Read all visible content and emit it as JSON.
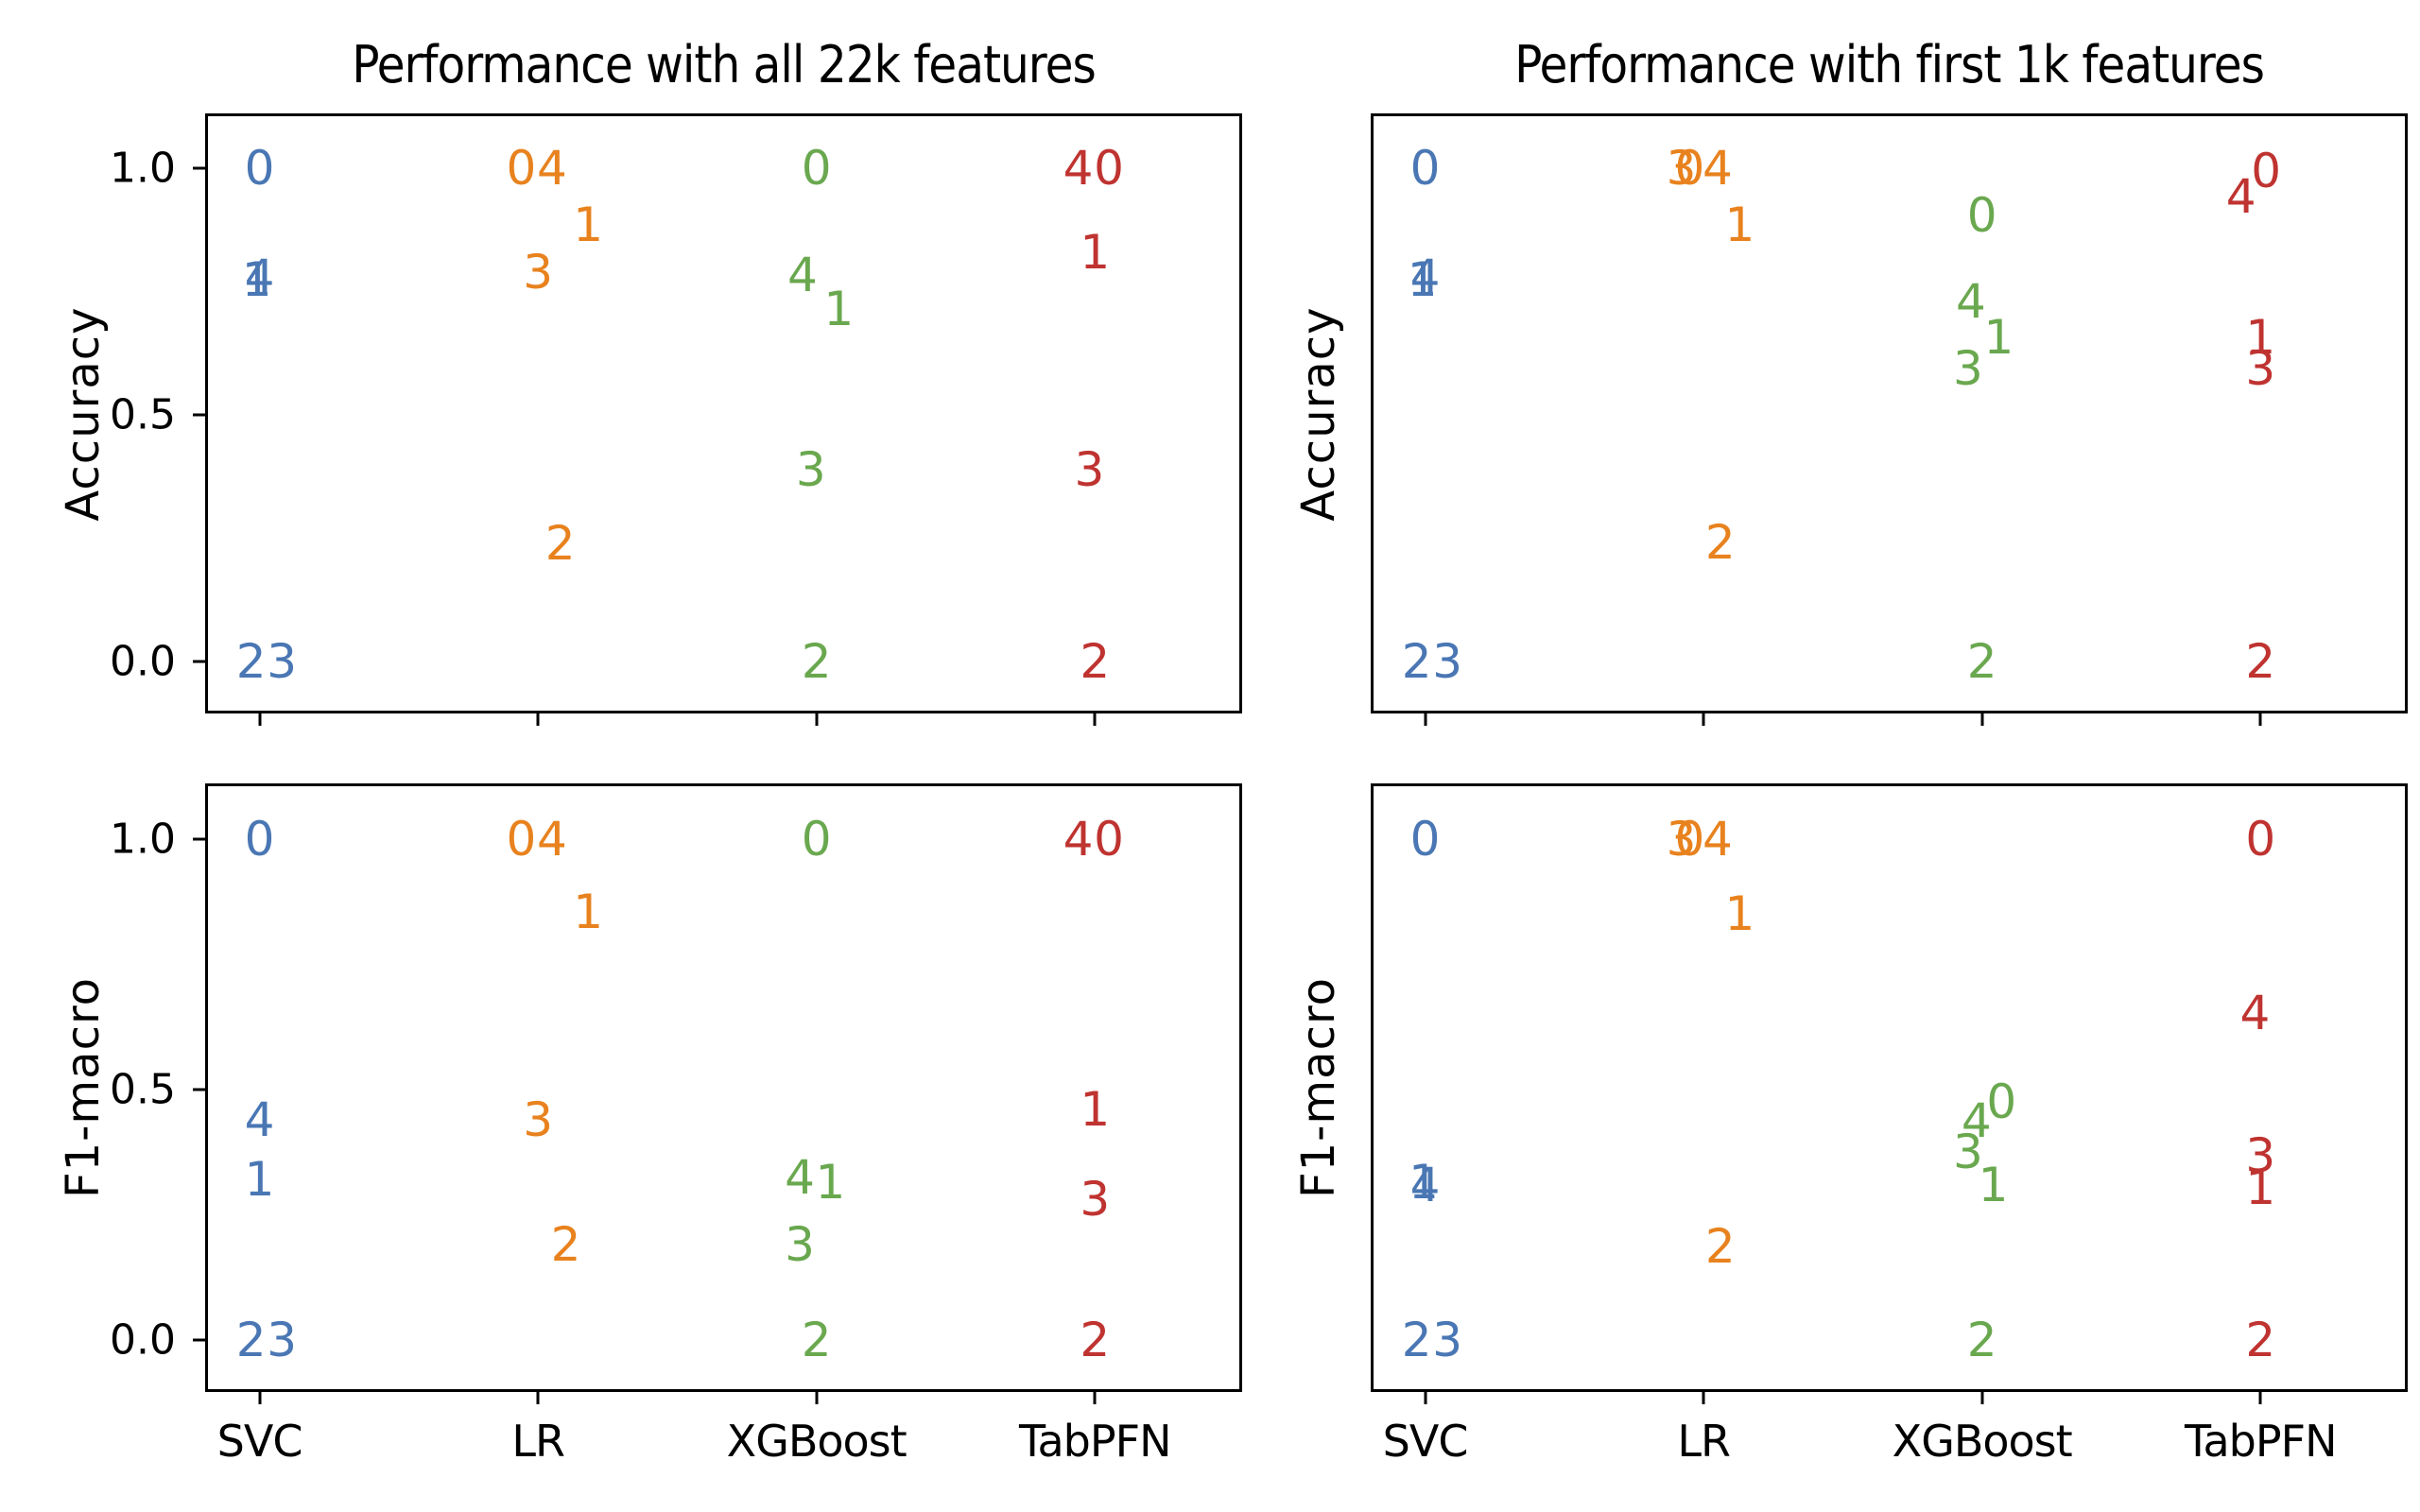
{
  "figure": {
    "background": "#ffffff",
    "marker_note": "each plotted marker is the dataset index digit 0-4, colored by classifier"
  },
  "series_colors": {
    "SVC": "#4a77b4",
    "LR": "#e8821e",
    "XGBoost": "#6aa84f",
    "TabPFN": "#bf3330"
  },
  "x_categories": [
    "SVC",
    "LR",
    "XGBoost",
    "TabPFN"
  ],
  "yticks": [
    {
      "label": "1.0",
      "value": 1.0
    },
    {
      "label": "0.5",
      "value": 0.5
    },
    {
      "label": "0.0",
      "value": 0.0
    }
  ],
  "chart_data": [
    {
      "type": "scatter",
      "id": "accuracy-22k",
      "title": "Performance with all 22k features",
      "ylabel": "Accuracy",
      "xlabel": "",
      "x_categories": [
        "SVC",
        "LR",
        "XGBoost",
        "TabPFN"
      ],
      "ylim": [
        -0.106,
        1.106
      ],
      "show_title": true,
      "show_ytick_labels": true,
      "show_xtick_labels": false,
      "points": [
        {
          "classifier": "SVC",
          "dataset": "0",
          "x": 0.0,
          "y": 1.0
        },
        {
          "classifier": "SVC",
          "dataset": "1",
          "x": -0.01,
          "y": 0.775
        },
        {
          "classifier": "SVC",
          "dataset": "4",
          "x": 0.0,
          "y": 0.78
        },
        {
          "classifier": "SVC",
          "dataset": "2",
          "x": -0.03,
          "y": 0.0
        },
        {
          "classifier": "SVC",
          "dataset": "3",
          "x": 0.08,
          "y": 0.0
        },
        {
          "classifier": "LR",
          "dataset": "0",
          "x": 0.94,
          "y": 1.0
        },
        {
          "classifier": "LR",
          "dataset": "4",
          "x": 1.05,
          "y": 1.0
        },
        {
          "classifier": "LR",
          "dataset": "1",
          "x": 1.18,
          "y": 0.885
        },
        {
          "classifier": "LR",
          "dataset": "3",
          "x": 1.0,
          "y": 0.79
        },
        {
          "classifier": "LR",
          "dataset": "2",
          "x": 1.08,
          "y": 0.24
        },
        {
          "classifier": "XGBoost",
          "dataset": "0",
          "x": 2.0,
          "y": 1.0
        },
        {
          "classifier": "XGBoost",
          "dataset": "4",
          "x": 1.95,
          "y": 0.785
        },
        {
          "classifier": "XGBoost",
          "dataset": "1",
          "x": 2.08,
          "y": 0.715
        },
        {
          "classifier": "XGBoost",
          "dataset": "3",
          "x": 1.98,
          "y": 0.39
        },
        {
          "classifier": "XGBoost",
          "dataset": "2",
          "x": 2.0,
          "y": 0.0
        },
        {
          "classifier": "TabPFN",
          "dataset": "4",
          "x": 2.94,
          "y": 1.0
        },
        {
          "classifier": "TabPFN",
          "dataset": "0",
          "x": 3.05,
          "y": 1.0
        },
        {
          "classifier": "TabPFN",
          "dataset": "1",
          "x": 3.0,
          "y": 0.83
        },
        {
          "classifier": "TabPFN",
          "dataset": "3",
          "x": 2.98,
          "y": 0.39
        },
        {
          "classifier": "TabPFN",
          "dataset": "2",
          "x": 3.0,
          "y": 0.0
        }
      ]
    },
    {
      "type": "scatter",
      "id": "accuracy-1k",
      "title": "Performance with first 1k features",
      "ylabel": "Accuracy",
      "xlabel": "",
      "x_categories": [
        "SVC",
        "LR",
        "XGBoost",
        "TabPFN"
      ],
      "ylim": [
        -0.106,
        1.106
      ],
      "show_title": true,
      "show_ytick_labels": false,
      "show_xtick_labels": false,
      "points": [
        {
          "classifier": "SVC",
          "dataset": "0",
          "x": 0.0,
          "y": 1.0
        },
        {
          "classifier": "SVC",
          "dataset": "1",
          "x": -0.01,
          "y": 0.775
        },
        {
          "classifier": "SVC",
          "dataset": "4",
          "x": 0.0,
          "y": 0.78
        },
        {
          "classifier": "SVC",
          "dataset": "2",
          "x": -0.03,
          "y": 0.0
        },
        {
          "classifier": "SVC",
          "dataset": "3",
          "x": 0.08,
          "y": 0.0
        },
        {
          "classifier": "LR",
          "dataset": "3",
          "x": 0.92,
          "y": 1.0
        },
        {
          "classifier": "LR",
          "dataset": "0",
          "x": 0.95,
          "y": 1.0
        },
        {
          "classifier": "LR",
          "dataset": "4",
          "x": 1.05,
          "y": 1.0
        },
        {
          "classifier": "LR",
          "dataset": "1",
          "x": 1.13,
          "y": 0.885
        },
        {
          "classifier": "LR",
          "dataset": "2",
          "x": 1.06,
          "y": 0.243
        },
        {
          "classifier": "XGBoost",
          "dataset": "0",
          "x": 2.0,
          "y": 0.905
        },
        {
          "classifier": "XGBoost",
          "dataset": "4",
          "x": 1.96,
          "y": 0.73
        },
        {
          "classifier": "XGBoost",
          "dataset": "1",
          "x": 2.06,
          "y": 0.657
        },
        {
          "classifier": "XGBoost",
          "dataset": "3",
          "x": 1.95,
          "y": 0.595
        },
        {
          "classifier": "XGBoost",
          "dataset": "2",
          "x": 2.0,
          "y": 0.0
        },
        {
          "classifier": "TabPFN",
          "dataset": "4",
          "x": 2.93,
          "y": 0.943
        },
        {
          "classifier": "TabPFN",
          "dataset": "0",
          "x": 3.02,
          "y": 0.995
        },
        {
          "classifier": "TabPFN",
          "dataset": "1",
          "x": 3.0,
          "y": 0.657
        },
        {
          "classifier": "TabPFN",
          "dataset": "3",
          "x": 3.0,
          "y": 0.595
        },
        {
          "classifier": "TabPFN",
          "dataset": "2",
          "x": 3.0,
          "y": 0.0
        }
      ]
    },
    {
      "type": "scatter",
      "id": "f1-macro-22k",
      "title": "",
      "ylabel": "F1-macro",
      "xlabel": "",
      "x_categories": [
        "SVC",
        "LR",
        "XGBoost",
        "TabPFN"
      ],
      "ylim": [
        -0.106,
        1.106
      ],
      "show_title": false,
      "show_ytick_labels": true,
      "show_xtick_labels": true,
      "points": [
        {
          "classifier": "SVC",
          "dataset": "0",
          "x": 0.0,
          "y": 1.0
        },
        {
          "classifier": "SVC",
          "dataset": "4",
          "x": 0.0,
          "y": 0.44
        },
        {
          "classifier": "SVC",
          "dataset": "1",
          "x": 0.0,
          "y": 0.32
        },
        {
          "classifier": "SVC",
          "dataset": "2",
          "x": -0.03,
          "y": 0.0
        },
        {
          "classifier": "SVC",
          "dataset": "3",
          "x": 0.08,
          "y": 0.0
        },
        {
          "classifier": "LR",
          "dataset": "0",
          "x": 0.94,
          "y": 1.0
        },
        {
          "classifier": "LR",
          "dataset": "4",
          "x": 1.05,
          "y": 1.0
        },
        {
          "classifier": "LR",
          "dataset": "1",
          "x": 1.18,
          "y": 0.855
        },
        {
          "classifier": "LR",
          "dataset": "3",
          "x": 1.0,
          "y": 0.44
        },
        {
          "classifier": "LR",
          "dataset": "2",
          "x": 1.1,
          "y": 0.19
        },
        {
          "classifier": "XGBoost",
          "dataset": "0",
          "x": 2.0,
          "y": 1.0
        },
        {
          "classifier": "XGBoost",
          "dataset": "4",
          "x": 1.94,
          "y": 0.325
        },
        {
          "classifier": "XGBoost",
          "dataset": "1",
          "x": 2.05,
          "y": 0.315
        },
        {
          "classifier": "XGBoost",
          "dataset": "3",
          "x": 1.94,
          "y": 0.19
        },
        {
          "classifier": "XGBoost",
          "dataset": "2",
          "x": 2.0,
          "y": 0.0
        },
        {
          "classifier": "TabPFN",
          "dataset": "4",
          "x": 2.94,
          "y": 1.0
        },
        {
          "classifier": "TabPFN",
          "dataset": "0",
          "x": 3.05,
          "y": 1.0
        },
        {
          "classifier": "TabPFN",
          "dataset": "1",
          "x": 3.0,
          "y": 0.46
        },
        {
          "classifier": "TabPFN",
          "dataset": "3",
          "x": 3.0,
          "y": 0.28
        },
        {
          "classifier": "TabPFN",
          "dataset": "2",
          "x": 3.0,
          "y": 0.0
        }
      ]
    },
    {
      "type": "scatter",
      "id": "f1-macro-1k",
      "title": "",
      "ylabel": "F1-macro",
      "xlabel": "",
      "x_categories": [
        "SVC",
        "LR",
        "XGBoost",
        "TabPFN"
      ],
      "ylim": [
        -0.106,
        1.106
      ],
      "show_title": false,
      "show_ytick_labels": false,
      "show_xtick_labels": true,
      "points": [
        {
          "classifier": "SVC",
          "dataset": "0",
          "x": 0.0,
          "y": 1.0
        },
        {
          "classifier": "SVC",
          "dataset": "1",
          "x": -0.005,
          "y": 0.315
        },
        {
          "classifier": "SVC",
          "dataset": "4",
          "x": 0.0,
          "y": 0.31
        },
        {
          "classifier": "SVC",
          "dataset": "2",
          "x": -0.03,
          "y": 0.0
        },
        {
          "classifier": "SVC",
          "dataset": "3",
          "x": 0.08,
          "y": 0.0
        },
        {
          "classifier": "LR",
          "dataset": "3",
          "x": 0.92,
          "y": 1.0
        },
        {
          "classifier": "LR",
          "dataset": "0",
          "x": 0.95,
          "y": 1.0
        },
        {
          "classifier": "LR",
          "dataset": "4",
          "x": 1.05,
          "y": 1.0
        },
        {
          "classifier": "LR",
          "dataset": "1",
          "x": 1.13,
          "y": 0.852
        },
        {
          "classifier": "LR",
          "dataset": "2",
          "x": 1.06,
          "y": 0.186
        },
        {
          "classifier": "XGBoost",
          "dataset": "0",
          "x": 2.07,
          "y": 0.476
        },
        {
          "classifier": "XGBoost",
          "dataset": "4",
          "x": 1.98,
          "y": 0.438
        },
        {
          "classifier": "XGBoost",
          "dataset": "3",
          "x": 1.95,
          "y": 0.376
        },
        {
          "classifier": "XGBoost",
          "dataset": "1",
          "x": 2.04,
          "y": 0.31
        },
        {
          "classifier": "XGBoost",
          "dataset": "2",
          "x": 2.0,
          "y": 0.0
        },
        {
          "classifier": "TabPFN",
          "dataset": "0",
          "x": 3.0,
          "y": 1.0
        },
        {
          "classifier": "TabPFN",
          "dataset": "4",
          "x": 2.98,
          "y": 0.652
        },
        {
          "classifier": "TabPFN",
          "dataset": "3",
          "x": 3.0,
          "y": 0.367
        },
        {
          "classifier": "TabPFN",
          "dataset": "1",
          "x": 3.0,
          "y": 0.304
        },
        {
          "classifier": "TabPFN",
          "dataset": "2",
          "x": 3.0,
          "y": 0.0
        }
      ]
    }
  ]
}
